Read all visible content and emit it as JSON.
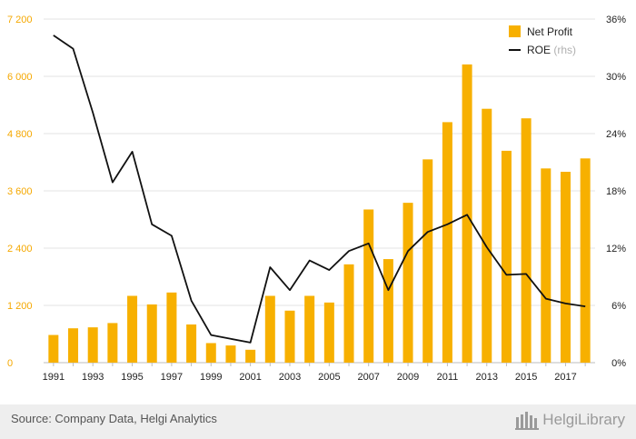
{
  "chart_data": {
    "type": "bar+line",
    "x": [
      "1991",
      "1992",
      "1993",
      "1994",
      "1995",
      "1996",
      "1997",
      "1998",
      "1999",
      "2000",
      "2001",
      "2002",
      "2003",
      "2004",
      "2005",
      "2006",
      "2007",
      "2008",
      "2009",
      "2010",
      "2011",
      "2012",
      "2013",
      "2014",
      "2015",
      "2016",
      "2017",
      "2018"
    ],
    "x_tick_labels": [
      "1991",
      "1993",
      "1995",
      "1997",
      "1999",
      "2001",
      "2003",
      "2005",
      "2007",
      "2009",
      "2011",
      "2013",
      "2015",
      "2017"
    ],
    "series": [
      {
        "name": "Net Profit",
        "type": "bar",
        "axis": "left",
        "color": "#f7b000",
        "values": [
          580,
          720,
          740,
          830,
          1400,
          1220,
          1470,
          800,
          410,
          360,
          270,
          1400,
          1090,
          1400,
          1260,
          2060,
          3210,
          2170,
          3350,
          4260,
          5040,
          6250,
          5320,
          4440,
          5120,
          4070,
          4000,
          4280
        ]
      },
      {
        "name": "ROE",
        "name_suffix": "(rhs)",
        "type": "line",
        "axis": "right",
        "color": "#111111",
        "values": [
          34.3,
          32.9,
          26.2,
          18.9,
          22.1,
          14.5,
          13.3,
          6.5,
          2.9,
          2.5,
          2.1,
          10.0,
          7.6,
          10.7,
          9.7,
          11.7,
          12.5,
          7.6,
          11.7,
          13.7,
          14.5,
          15.5,
          12.1,
          9.2,
          9.3,
          6.7,
          6.2,
          5.9
        ]
      }
    ],
    "y_left": {
      "ticks": [
        "0",
        "1 200",
        "2 400",
        "3 600",
        "4 800",
        "6 000",
        "7 200"
      ],
      "ylim": [
        0,
        7200
      ],
      "color": "#f5a800"
    },
    "y_right": {
      "ticks": [
        "0%",
        "6%",
        "12%",
        "18%",
        "24%",
        "30%",
        "36%"
      ],
      "ylim": [
        0,
        36
      ]
    },
    "legend_position": "top-right",
    "grid": "horizontal"
  },
  "footer": {
    "source": "Source: Company Data, Helgi Analytics",
    "brand": "HelgiLibrary"
  }
}
